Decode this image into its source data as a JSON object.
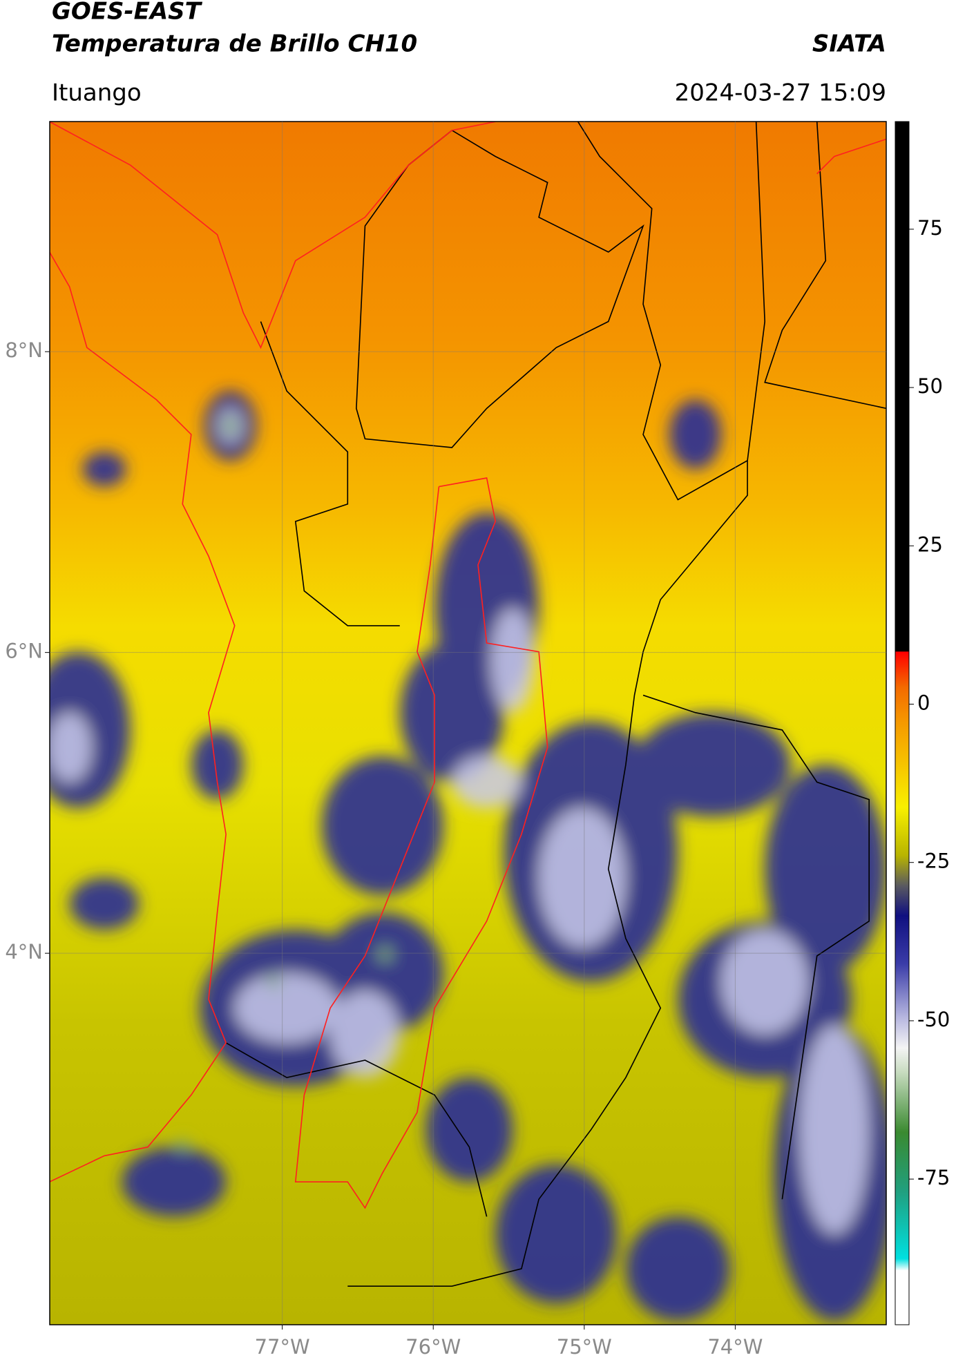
{
  "header": {
    "satellite": "GOES-EAST",
    "product": "Temperatura de Brillo CH10",
    "agency": "SIATA",
    "region": "Ituango",
    "datetime": "2024-03-27 15:09"
  },
  "map": {
    "xlim": [
      -78.54,
      -73.0
    ],
    "ylim": [
      1.53,
      9.53
    ],
    "xticks": [
      {
        "value": -77,
        "label": "77°W"
      },
      {
        "value": -76,
        "label": "76°W"
      },
      {
        "value": -75,
        "label": "75°W"
      },
      {
        "value": -74,
        "label": "74°W"
      }
    ],
    "yticks": [
      {
        "value": 8,
        "label": "8°N"
      },
      {
        "value": 6,
        "label": "6°N"
      },
      {
        "value": 4,
        "label": "4°N"
      }
    ]
  },
  "colorbar": {
    "lim": [
      -98,
      92
    ],
    "ticks": [
      75,
      50,
      25,
      0,
      -25,
      -50,
      -75
    ]
  }
}
